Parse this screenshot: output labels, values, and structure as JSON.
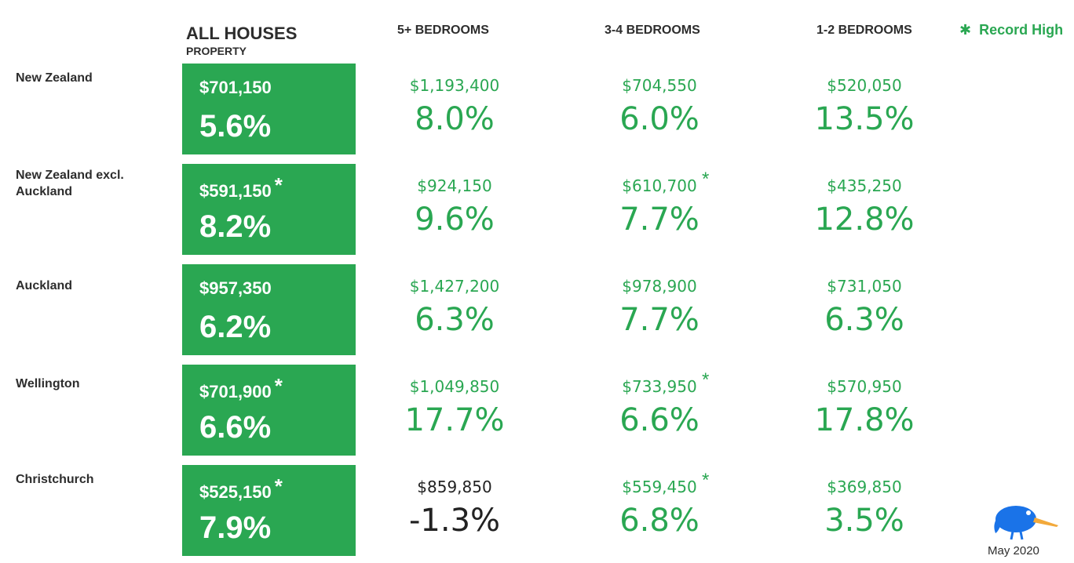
{
  "header": {
    "all_title": "ALL HOUSES",
    "all_subtitle": "PROPERTY",
    "col5": "5+ BEDROOMS",
    "col34": "3-4 BEDROOMS",
    "col12": "1-2 BEDROOMS"
  },
  "legend": {
    "label": "Record High",
    "icon": "asterisk-icon"
  },
  "rows": [
    {
      "label": "New Zealand",
      "all": {
        "price": "$701,150",
        "pct": "5.6%",
        "record": false
      },
      "b5": {
        "price": "$1,193,400",
        "pct": "8.0%",
        "record": false
      },
      "b34": {
        "price": "$704,550",
        "pct": "6.0%",
        "record": false
      },
      "b12": {
        "price": "$520,050",
        "pct": "13.5%",
        "record": false
      }
    },
    {
      "label": "New Zealand excl. Auckland",
      "all": {
        "price": "$591,150",
        "pct": "8.2%",
        "record": true
      },
      "b5": {
        "price": "$924,150",
        "pct": "9.6%",
        "record": false
      },
      "b34": {
        "price": "$610,700",
        "pct": "7.7%",
        "record": true
      },
      "b12": {
        "price": "$435,250",
        "pct": "12.8%",
        "record": false
      }
    },
    {
      "label": "Auckland",
      "all": {
        "price": "$957,350",
        "pct": "6.2%",
        "record": false
      },
      "b5": {
        "price": "$1,427,200",
        "pct": "6.3%",
        "record": false
      },
      "b34": {
        "price": "$978,900",
        "pct": "7.7%",
        "record": false
      },
      "b12": {
        "price": "$731,050",
        "pct": "6.3%",
        "record": false
      }
    },
    {
      "label": "Wellington",
      "all": {
        "price": "$701,900",
        "pct": "6.6%",
        "record": true
      },
      "b5": {
        "price": "$1,049,850",
        "pct": "17.7%",
        "record": false
      },
      "b34": {
        "price": "$733,950",
        "pct": "6.6%",
        "record": true
      },
      "b12": {
        "price": "$570,950",
        "pct": "17.8%",
        "record": false
      }
    },
    {
      "label": "Christchurch",
      "all": {
        "price": "$525,150",
        "pct": "7.9%",
        "record": true
      },
      "b5": {
        "price": "$859,850",
        "pct": "-1.3%",
        "record": false
      },
      "b34": {
        "price": "$559,450",
        "pct": "6.8%",
        "record": true
      },
      "b12": {
        "price": "$369,850",
        "pct": "3.5%",
        "record": false
      }
    }
  ],
  "footer": {
    "date": "May 2020",
    "logo_icon": "kiwi-bird-icon"
  },
  "colors": {
    "green": "#2aa752",
    "neutral": "#222222",
    "heading": "#2d2d2d",
    "kiwi": "#1a73e8"
  }
}
